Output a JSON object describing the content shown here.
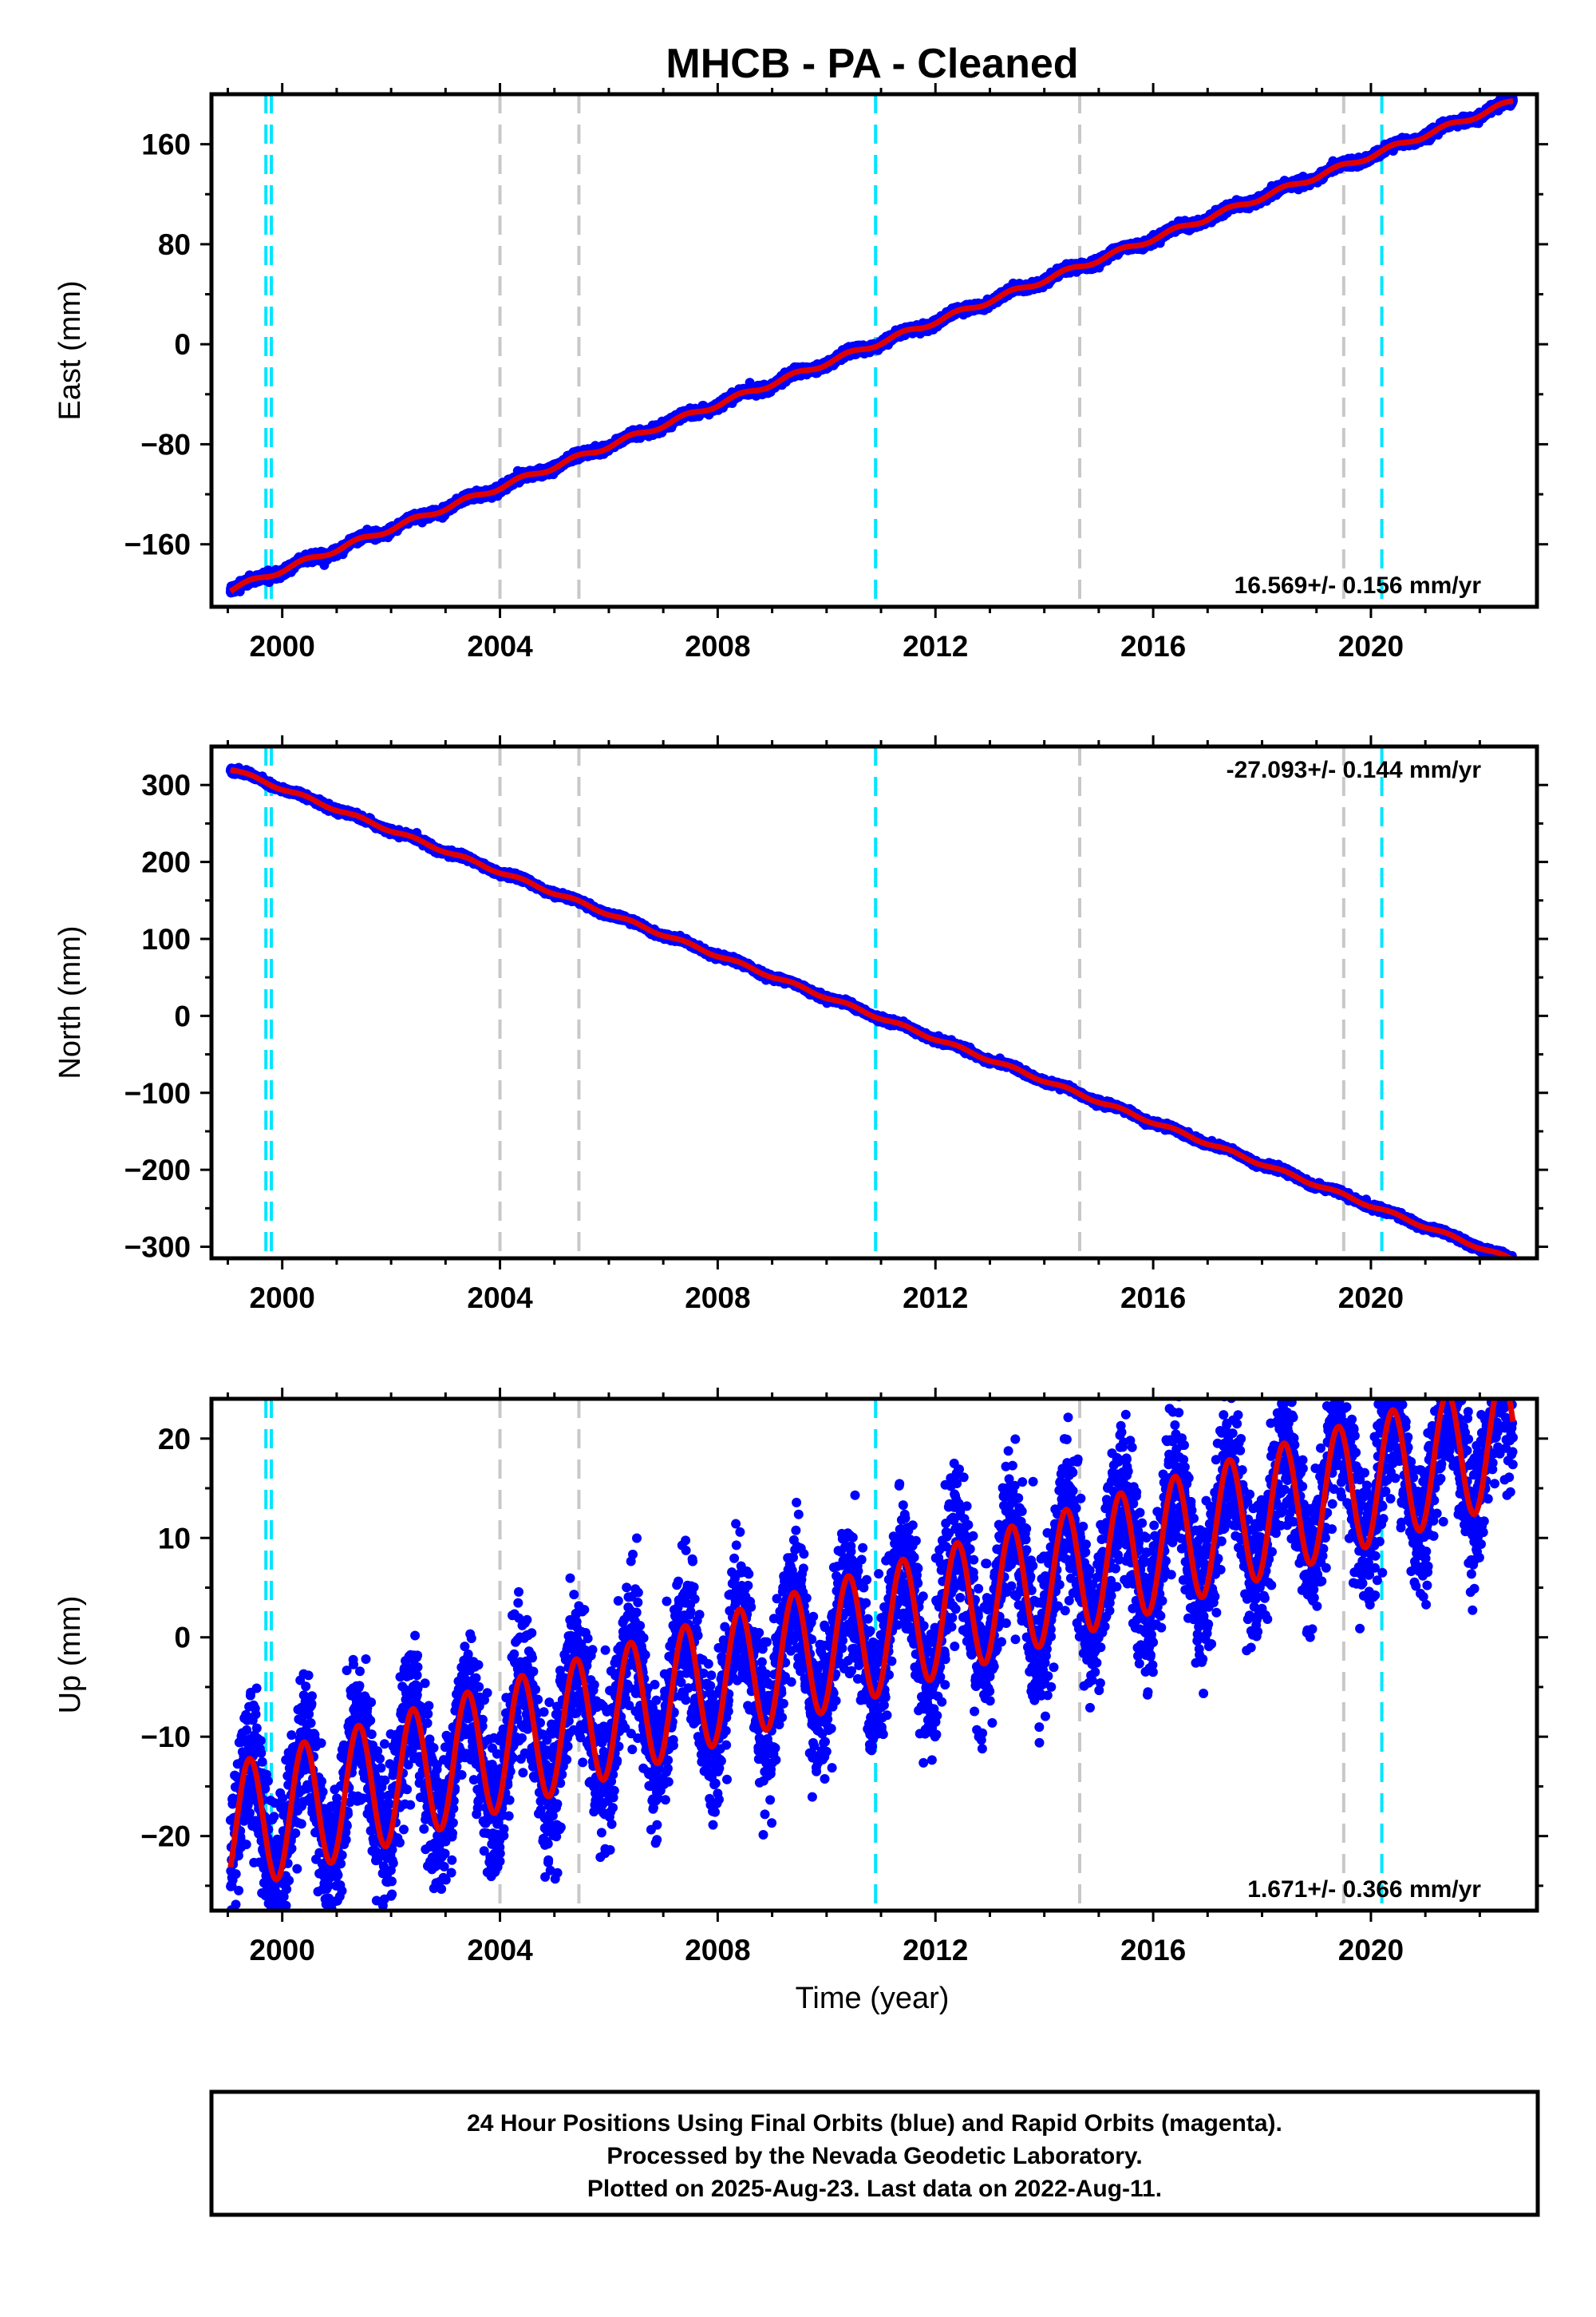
{
  "title": "MHCB  - PA - Cleaned",
  "xlabel": "Time (year)",
  "footer": {
    "line1": "24 Hour Positions Using Final Orbits (blue) and Rapid Orbits (magenta).",
    "line2": "Processed by the Nevada Geodetic Laboratory.",
    "line3": "Plotted on 2025-Aug-23. Last data on 2022-Aug-11."
  },
  "colors": {
    "data": "#0000ff",
    "fit": "#e00000",
    "equipment_change": "#00e5ff",
    "earthquake": "#c8c8c8",
    "frame": "#000000"
  },
  "chart_data": [
    {
      "type": "scatter",
      "panel": "east",
      "ylabel": "East (mm)",
      "rate_label": "16.569+/- 0.156 mm/yr",
      "xlim": [
        1998.7,
        2023.05
      ],
      "ylim": [
        -210,
        200
      ],
      "xticks": [
        2000,
        2004,
        2008,
        2012,
        2016,
        2020
      ],
      "yticks": [
        160,
        80,
        0,
        -80,
        -160
      ],
      "ytick_labels": [
        "160",
        "80",
        "0",
        "−80",
        "−160"
      ],
      "minor_yticks": [
        120,
        40,
        -40,
        -120
      ],
      "data_start": 1999.05,
      "data_end": 2022.61,
      "slope": 16.569,
      "intercept_at_2010_9": 0,
      "annual_amplitude": 2.0,
      "scatter": 1.6,
      "rate_position": "bottom-right"
    },
    {
      "type": "scatter",
      "panel": "north",
      "ylabel": "North (mm)",
      "rate_label": "-27.093+/- 0.144 mm/yr",
      "xlim": [
        1998.7,
        2023.05
      ],
      "ylim": [
        -315,
        350
      ],
      "xticks": [
        2000,
        2004,
        2008,
        2012,
        2016,
        2020
      ],
      "yticks": [
        300,
        200,
        100,
        0,
        -100,
        -200,
        -300
      ],
      "ytick_labels": [
        "300",
        "200",
        "100",
        "0",
        "−100",
        "−200",
        "−300"
      ],
      "minor_yticks": [
        250,
        150,
        50,
        -50,
        -150,
        -250
      ],
      "data_start": 1999.05,
      "data_end": 2022.61,
      "slope": -27.093,
      "intercept_at_2010_9": 0,
      "annual_amplitude": 2.0,
      "scatter": 1.8,
      "rate_position": "top-right"
    },
    {
      "type": "scatter",
      "panel": "up",
      "ylabel": "Up (mm)",
      "rate_label": "1.671+/- 0.366 mm/yr",
      "xlim": [
        1998.7,
        2023.05
      ],
      "ylim": [
        -27.5,
        24
      ],
      "xticks": [
        2000,
        2004,
        2008,
        2012,
        2016,
        2020
      ],
      "yticks": [
        20,
        10,
        0,
        -10,
        -20
      ],
      "ytick_labels": [
        "20",
        "10",
        "0",
        "−10",
        "−20"
      ],
      "minor_yticks": [
        15,
        5,
        -5,
        -15,
        -25
      ],
      "data_start": 1999.05,
      "data_end": 2022.61,
      "slope": 1.671,
      "intercept_at_2010_9": 0.5,
      "annual_amplitude": 6.5,
      "scatter": 3.6,
      "rate_position": "bottom-right"
    }
  ],
  "equipment_changes": [
    1999.7,
    1999.8,
    2010.9,
    2020.2
  ],
  "earthquakes": [
    2004.0,
    2005.45,
    2014.65,
    2019.5
  ]
}
